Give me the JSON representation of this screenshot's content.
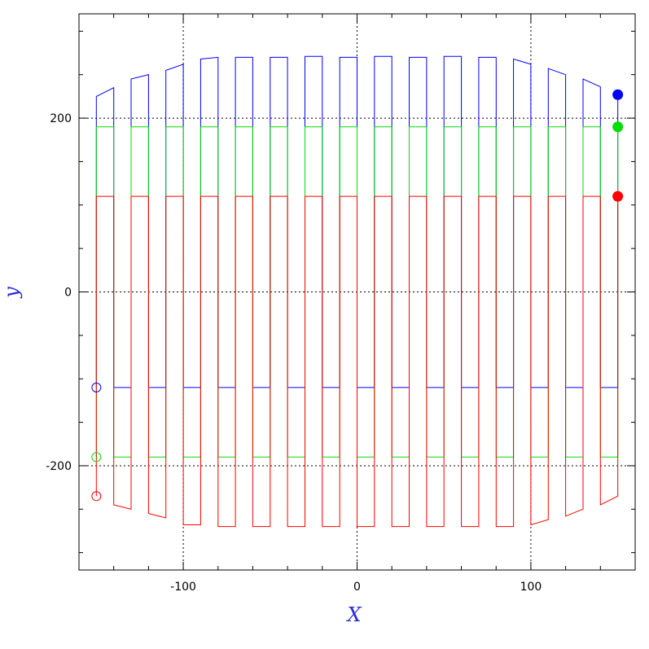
{
  "chart_data": {
    "type": "line",
    "title": "",
    "xlabel": "X",
    "ylabel": "y",
    "xlim": [
      -160,
      160
    ],
    "ylim": [
      -320,
      320
    ],
    "x_ticks": [
      -100,
      0,
      100
    ],
    "y_ticks": [
      -200,
      0,
      200
    ],
    "x_tick_labels": [
      "-100",
      "0",
      "100"
    ],
    "y_tick_labels": [
      "-200",
      "0",
      "200"
    ],
    "grid": "dotted lines at x = -100, 0, 100 and y = -200, 0, 200",
    "colors": {
      "blue": "#0000ff",
      "green": "#00dd00",
      "red": "#ff0000",
      "label": "#2a2ad8"
    },
    "series": [
      {
        "color": "blue",
        "top": [
          [
            -150,
            225
          ],
          [
            -140,
            235
          ],
          [
            -130,
            245
          ],
          [
            -120,
            250
          ],
          [
            -110,
            255
          ],
          [
            -100,
            262
          ],
          [
            -90,
            268
          ],
          [
            -80,
            270
          ],
          [
            -70,
            270
          ],
          [
            -60,
            270
          ],
          [
            -50,
            270
          ],
          [
            -40,
            270
          ],
          [
            -30,
            271
          ],
          [
            -20,
            271
          ],
          [
            -10,
            270
          ],
          [
            0,
            270
          ],
          [
            10,
            271
          ],
          [
            20,
            271
          ],
          [
            30,
            270
          ],
          [
            40,
            270
          ],
          [
            50,
            271
          ],
          [
            60,
            271
          ],
          [
            70,
            270
          ],
          [
            80,
            270
          ],
          [
            90,
            268
          ],
          [
            100,
            262
          ],
          [
            110,
            257
          ],
          [
            120,
            250
          ],
          [
            130,
            245
          ],
          [
            140,
            236
          ],
          [
            150,
            227
          ]
        ],
        "bottom": -110,
        "start_marker": [
          -150,
          -110
        ],
        "end_marker": [
          150,
          227
        ]
      },
      {
        "color": "green",
        "top": 190,
        "bottom": -190,
        "start_marker": [
          -150,
          -190
        ],
        "end_marker": [
          150,
          190
        ]
      },
      {
        "color": "red",
        "top": 110,
        "bottom": [
          [
            -150,
            -235
          ],
          [
            -140,
            -245
          ],
          [
            -130,
            -250
          ],
          [
            -120,
            -255
          ],
          [
            -110,
            -260
          ],
          [
            -100,
            -268
          ],
          [
            -90,
            -268
          ],
          [
            -80,
            -270
          ],
          [
            -70,
            -270
          ],
          [
            -60,
            -270
          ],
          [
            -50,
            -270
          ],
          [
            -40,
            -270
          ],
          [
            -30,
            -270
          ],
          [
            -20,
            -270
          ],
          [
            -10,
            -270
          ],
          [
            0,
            -270
          ],
          [
            10,
            -270
          ],
          [
            20,
            -270
          ],
          [
            30,
            -270
          ],
          [
            40,
            -270
          ],
          [
            50,
            -270
          ],
          [
            60,
            -270
          ],
          [
            70,
            -270
          ],
          [
            80,
            -270
          ],
          [
            90,
            -270
          ],
          [
            100,
            -268
          ],
          [
            110,
            -262
          ],
          [
            120,
            -258
          ],
          [
            130,
            -250
          ],
          [
            140,
            -245
          ],
          [
            150,
            -235
          ]
        ],
        "start_marker": [
          -150,
          -235
        ],
        "end_marker": [
          150,
          110
        ]
      }
    ]
  }
}
